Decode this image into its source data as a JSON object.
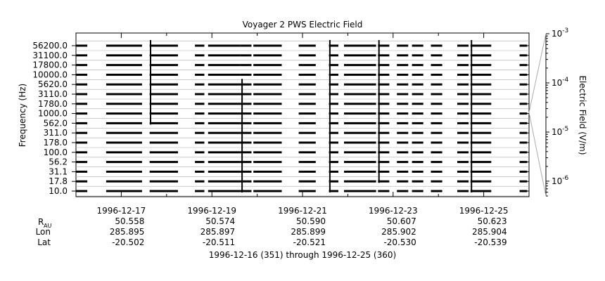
{
  "chart_data": {
    "type": "line",
    "title": "Voyager 2 PWS Electric Field",
    "ylabel": "Frequency (Hz)",
    "y2label": "Electric Field (V/m)",
    "channels": [
      "10.0",
      "17.8",
      "31.1",
      "56.2",
      "100.0",
      "178.0",
      "311.0",
      "562.0",
      "1000.0",
      "1780.0",
      "3110.0",
      "5620.0",
      "10000.0",
      "17800.0",
      "31100.0",
      "56200.0"
    ],
    "colorbar_ticks": [
      {
        "base": "10",
        "exp": "-3",
        "value": 0.001
      },
      {
        "base": "10",
        "exp": "-4",
        "value": 0.0001
      },
      {
        "base": "10",
        "exp": "-5",
        "value": 1e-05
      },
      {
        "base": "10",
        "exp": "-6",
        "value": 1e-06
      }
    ],
    "colorbar_range": [
      5e-07,
      0.001
    ],
    "colorbar_scale": "log",
    "xlim": [
      "1996-12-16",
      "1996-12-26"
    ],
    "x_tick_dates": [
      "1996-12-17",
      "1996-12-19",
      "1996-12-21",
      "1996-12-23",
      "1996-12-25"
    ],
    "x_minor_tick_dates": [
      "1996-12-16",
      "1996-12-18",
      "1996-12-20",
      "1996-12-22",
      "1996-12-24",
      "1996-12-26"
    ],
    "coverage_segments": [
      [
        "1996-12-16 00:00",
        "1996-12-16 06:00"
      ],
      [
        "1996-12-16 16:00",
        "1996-12-17 11:00"
      ],
      [
        "1996-12-17 15:00",
        "1996-12-18 06:00"
      ],
      [
        "1996-12-18 15:00",
        "1996-12-18 20:00"
      ],
      [
        "1996-12-18 22:00",
        "1996-12-19 15:00"
      ],
      [
        "1996-12-19 15:00",
        "1996-12-19 21:00"
      ],
      [
        "1996-12-19 22:00",
        "1996-12-20 13:00"
      ],
      [
        "1996-12-20 22:00",
        "1996-12-21 07:00"
      ],
      [
        "1996-12-21 14:00",
        "1996-12-21 19:00"
      ],
      [
        "1996-12-21 22:00",
        "1996-12-22 15:00"
      ],
      [
        "1996-12-22 16:00",
        "1996-12-22 22:00"
      ],
      [
        "1996-12-23 02:00",
        "1996-12-23 08:00"
      ],
      [
        "1996-12-23 10:00",
        "1996-12-23 16:00"
      ],
      [
        "1996-12-23 20:00",
        "1996-12-24 02:00"
      ],
      [
        "1996-12-24 10:00",
        "1996-12-24 16:00"
      ],
      [
        "1996-12-24 17:00",
        "1996-12-25 04:00"
      ],
      [
        "1996-12-25 19:00",
        "1996-12-25 23:00"
      ]
    ],
    "bursts": [
      {
        "date": "1996-12-17 15:30",
        "channel_from": 7,
        "channel_to": 15
      },
      {
        "date": "1996-12-19 16:00",
        "channel_from": 0,
        "channel_to": 11
      },
      {
        "date": "1996-12-21 14:30",
        "channel_from": 0,
        "channel_to": 15
      },
      {
        "date": "1996-12-22 16:30",
        "channel_from": 1,
        "channel_to": 15
      },
      {
        "date": "1996-12-24 17:30",
        "channel_from": 0,
        "channel_to": 15
      }
    ],
    "ephemeris": {
      "labels": {
        "r_main": "R",
        "r_sub": "AU",
        "lon": "Lon",
        "lat": "Lat"
      },
      "columns": [
        {
          "date": "1996-12-17",
          "r": "50.558",
          "lon": "285.895",
          "lat": "-20.502"
        },
        {
          "date": "1996-12-19",
          "r": "50.574",
          "lon": "285.897",
          "lat": "-20.511"
        },
        {
          "date": "1996-12-21",
          "r": "50.590",
          "lon": "285.899",
          "lat": "-20.521"
        },
        {
          "date": "1996-12-23",
          "r": "50.607",
          "lon": "285.902",
          "lat": "-20.530"
        },
        {
          "date": "1996-12-25",
          "r": "50.623",
          "lon": "285.904",
          "lat": "-20.539"
        }
      ]
    },
    "footer": "1996-12-16 (351) through 1996-12-25 (360)",
    "grid": true,
    "line_color": "#000000",
    "grid_color": "#aaaaaa"
  }
}
